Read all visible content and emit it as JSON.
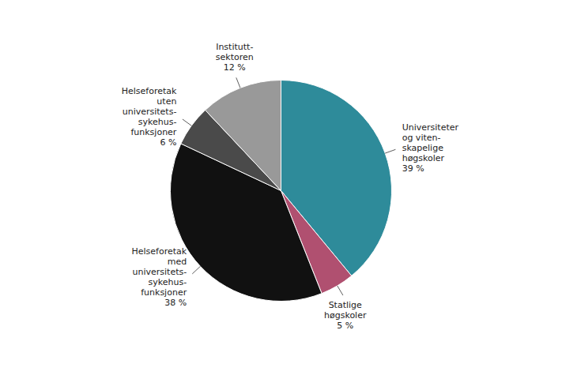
{
  "chart_data": {
    "type": "pie",
    "categories": [
      "Universiteter\nog viten-\nskapelige\nhøgskoler",
      "Statlige\nhøgskoler",
      "Helseforetak\nmed\nuniversitets-\nsykehus-\nfunksjoner",
      "Helseforetak\nuten\nuniversitets-\nsykehus-\nfunksjoner",
      "Institutt-\nsektoren"
    ],
    "values": [
      39,
      5,
      38,
      6,
      12
    ],
    "value_labels": [
      "39 %",
      "5 %",
      "38 %",
      "6 %",
      "12 %"
    ],
    "colors": [
      "#2E8B9A",
      "#B05070",
      "#111111",
      "#4A4A4A",
      "#999999"
    ],
    "data_labels": true
  }
}
